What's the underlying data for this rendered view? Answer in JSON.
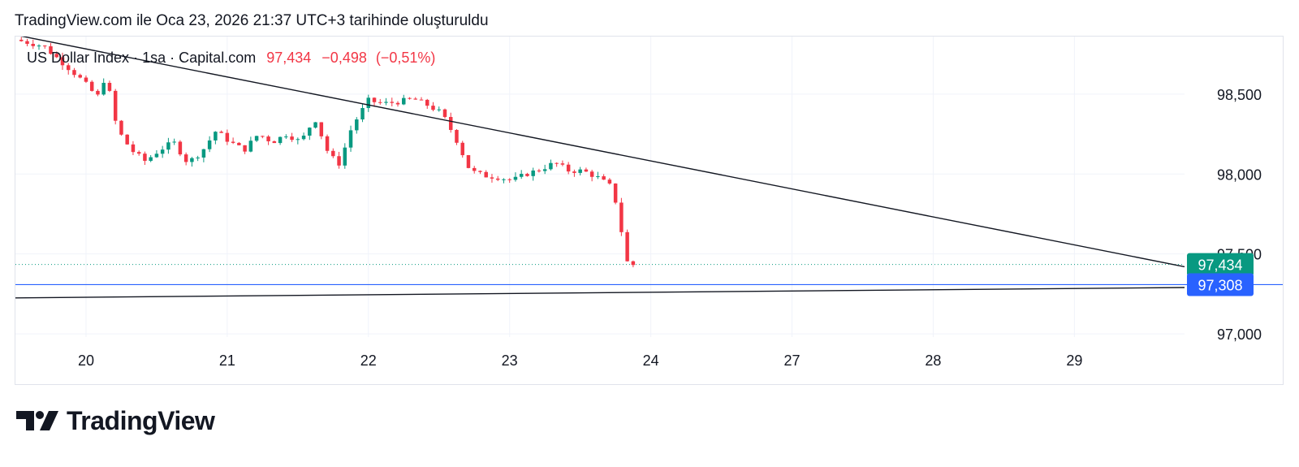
{
  "caption": "TradingView.com ile Oca 23, 2026 21:37 UTC+3 tarihinde oluşturuldu",
  "legend": {
    "symbol": "US Dollar Index",
    "interval": "1sa",
    "source": "Capital.com",
    "separator": "·",
    "price": "97,434",
    "change": "−0,498",
    "change_pct": "(−0,51%)"
  },
  "brand": {
    "name": "TradingView",
    "icon": "tradingview-logo-icon"
  },
  "colors": {
    "up": "#089981",
    "down": "#f23645",
    "last_price_badge": "#089981",
    "level_badge": "#2962ff",
    "trendline": "#131722",
    "grid": "#f0f3fa"
  },
  "chart_data": {
    "type": "candlestick",
    "y_axis": {
      "ticks": [
        {
          "value": 98.5,
          "label": "98,500"
        },
        {
          "value": 98.0,
          "label": "98,000"
        },
        {
          "value": 97.5,
          "label": "97,500"
        },
        {
          "value": 97.0,
          "label": "97,000"
        }
      ],
      "range": [
        96.98,
        98.86
      ]
    },
    "x_axis": {
      "ticks": [
        {
          "t": 0,
          "label": "20"
        },
        {
          "t": 1,
          "label": "21"
        },
        {
          "t": 2,
          "label": "22"
        },
        {
          "t": 3,
          "label": "23"
        },
        {
          "t": 4,
          "label": "24"
        },
        {
          "t": 5,
          "label": "27"
        },
        {
          "t": 6,
          "label": "28"
        },
        {
          "t": 7,
          "label": "29"
        }
      ],
      "range": [
        -0.5,
        7.78
      ],
      "note": "trading-day index; each day has 24 hourly bars"
    },
    "grid": true,
    "last_price": {
      "value": 97.434,
      "label": "97,434"
    },
    "horizontal_level": {
      "value": 97.308,
      "label": "97,308"
    },
    "trendlines": [
      {
        "name": "upper",
        "points": [
          [
            -0.5,
            98.87
          ],
          [
            7.78,
            97.42
          ]
        ]
      },
      {
        "name": "lower",
        "points": [
          [
            -0.5,
            97.225
          ],
          [
            7.78,
            97.29
          ]
        ]
      }
    ],
    "close_anchors": [
      [
        -0.5,
        98.84
      ],
      [
        -0.3,
        98.8
      ],
      [
        -0.12,
        98.66
      ],
      [
        -0.02,
        98.58
      ],
      [
        0.08,
        98.48
      ],
      [
        0.14,
        98.62
      ],
      [
        0.22,
        98.28
      ],
      [
        0.32,
        98.15
      ],
      [
        0.42,
        98.08
      ],
      [
        0.52,
        98.15
      ],
      [
        0.62,
        98.2
      ],
      [
        0.72,
        98.07
      ],
      [
        0.82,
        98.14
      ],
      [
        0.92,
        98.27
      ],
      [
        1.02,
        98.2
      ],
      [
        1.12,
        98.15
      ],
      [
        1.22,
        98.25
      ],
      [
        1.32,
        98.2
      ],
      [
        1.42,
        98.25
      ],
      [
        1.52,
        98.2
      ],
      [
        1.62,
        98.35
      ],
      [
        1.72,
        98.12
      ],
      [
        1.8,
        98.06
      ],
      [
        1.86,
        98.25
      ],
      [
        1.92,
        98.35
      ],
      [
        2.0,
        98.46
      ],
      [
        2.1,
        98.44
      ],
      [
        2.2,
        98.45
      ],
      [
        2.32,
        98.47
      ],
      [
        2.42,
        98.43
      ],
      [
        2.52,
        98.38
      ],
      [
        2.62,
        98.22
      ],
      [
        2.72,
        98.02
      ],
      [
        2.82,
        97.99
      ],
      [
        2.92,
        97.98
      ],
      [
        3.02,
        97.96
      ],
      [
        3.12,
        98.0
      ],
      [
        3.22,
        98.03
      ],
      [
        3.32,
        98.07
      ],
      [
        3.42,
        98.02
      ],
      [
        3.52,
        98.02
      ],
      [
        3.62,
        97.98
      ],
      [
        3.72,
        97.92
      ],
      [
        3.76,
        97.8
      ],
      [
        3.8,
        97.6
      ],
      [
        3.84,
        97.42
      ],
      [
        3.88,
        97.434
      ]
    ]
  }
}
